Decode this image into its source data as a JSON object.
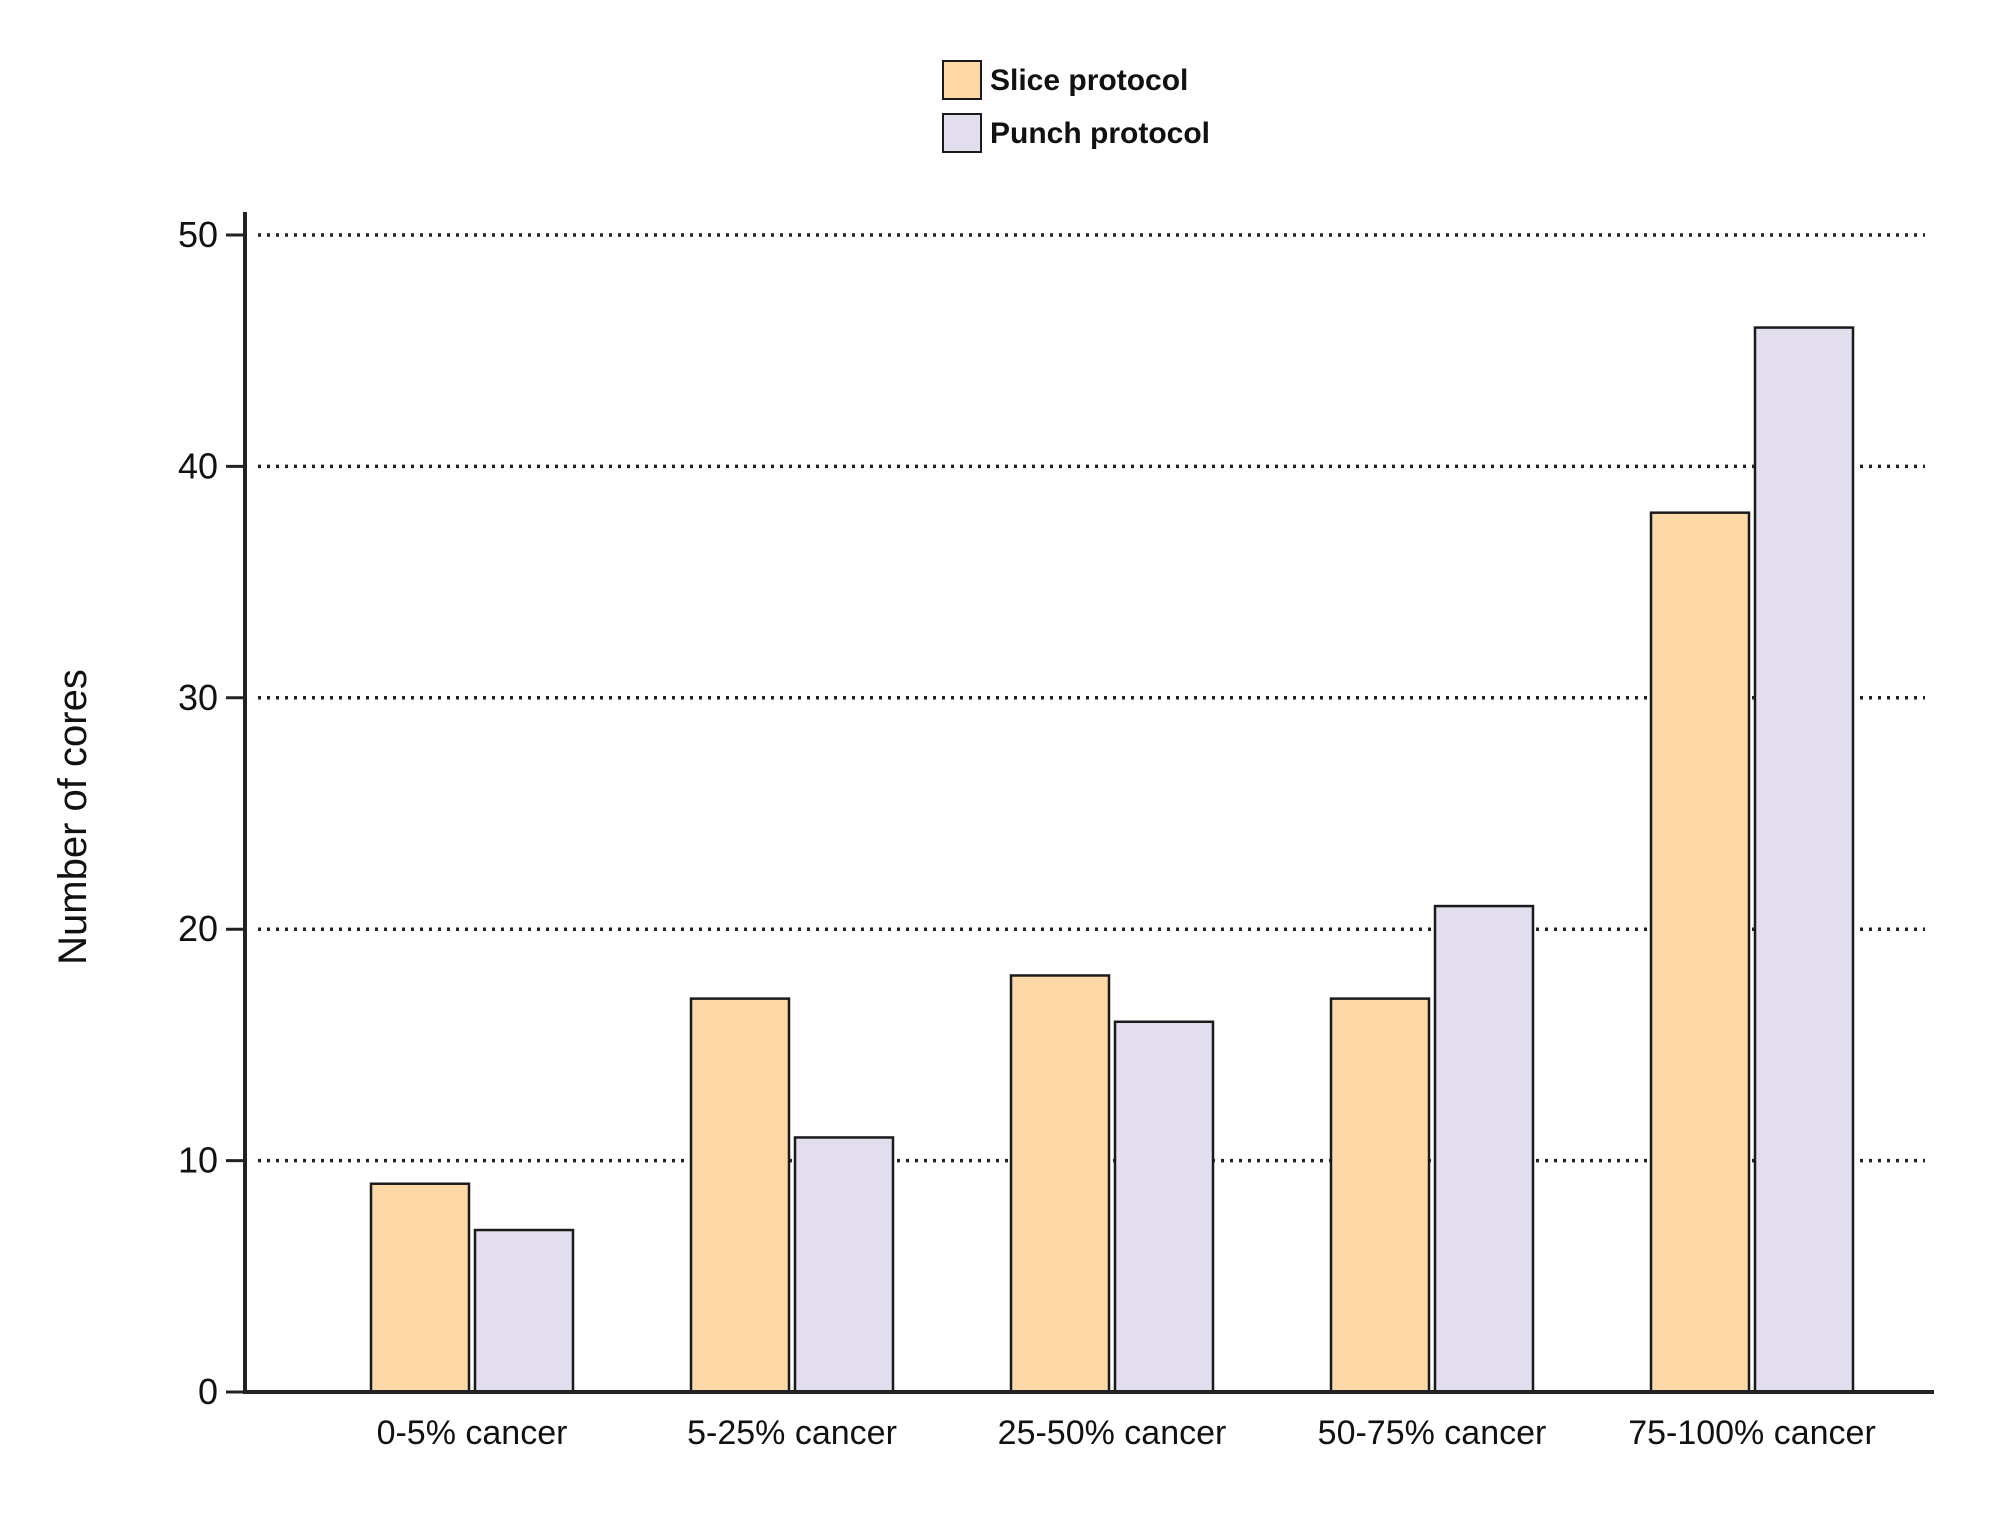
{
  "chart_data": {
    "type": "bar",
    "title": "",
    "xlabel": "",
    "ylabel": "Number of cores",
    "ylim": [
      0,
      50
    ],
    "yticks": [
      0,
      10,
      20,
      30,
      40,
      50
    ],
    "grid": "horizontal dotted",
    "legend_position": "top-center",
    "categories": [
      "0-5% cancer",
      "5-25% cancer",
      "25-50% cancer",
      "50-75% cancer",
      "75-100% cancer"
    ],
    "series": [
      {
        "name": "Slice protocol",
        "color": "#FDD8A6",
        "values": [
          9,
          17,
          18,
          17,
          38
        ]
      },
      {
        "name": "Punch protocol",
        "color": "#E3DEEE",
        "values": [
          7,
          11,
          16,
          21,
          46
        ]
      }
    ]
  }
}
